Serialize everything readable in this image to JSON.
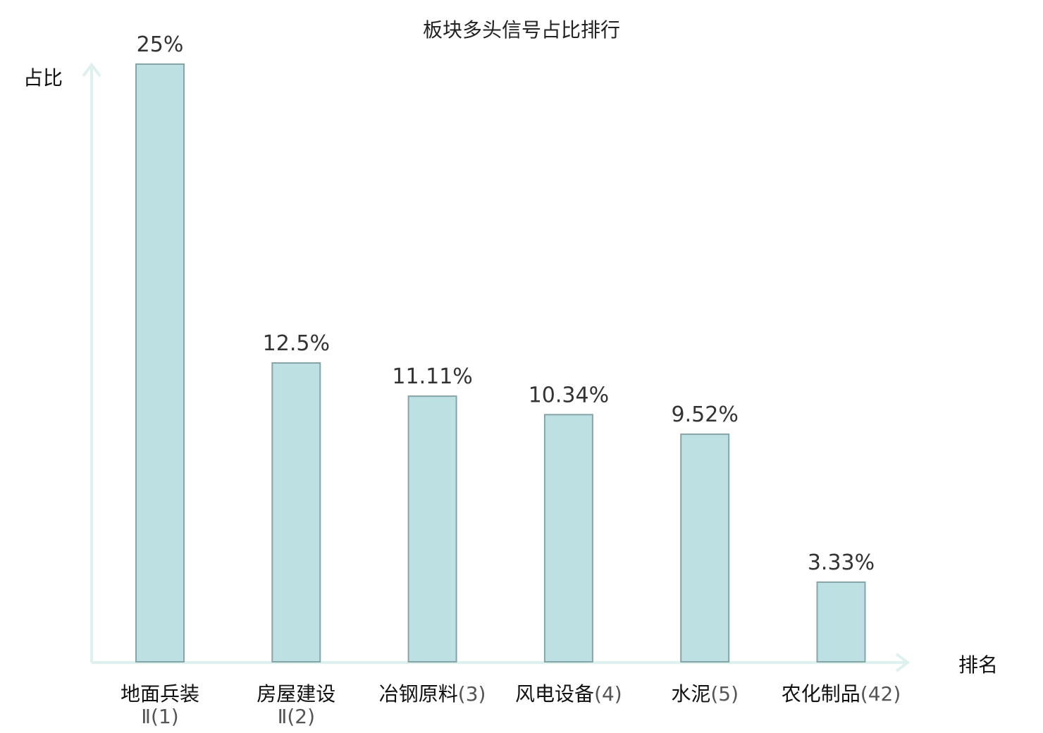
{
  "chart_data": {
    "type": "bar",
    "title": "板块多头信号占比排行",
    "ylabel": "占比",
    "xlabel": "排名",
    "ylim": [
      0,
      25
    ],
    "grid": false,
    "value_labels": [
      "25%",
      "12.5%",
      "11.11%",
      "10.34%",
      "9.52%",
      "3.33%"
    ],
    "categories": [
      {
        "name": "地面兵装",
        "rank": "Ⅱ(1)",
        "highlight": false
      },
      {
        "name": "房屋建设",
        "rank": "Ⅱ(2)",
        "highlight": false
      },
      {
        "name": "冶钢原料",
        "rank": "(3)",
        "highlight": false
      },
      {
        "name": "风电设备",
        "rank": "(4)",
        "highlight": false
      },
      {
        "name": "水泥",
        "rank": "(5)",
        "highlight": false
      },
      {
        "name": "农化制品",
        "rank": "(42)",
        "highlight": true
      }
    ],
    "values": [
      25,
      12.5,
      11.11,
      10.34,
      9.52,
      3.33
    ]
  },
  "colors": {
    "bar_fill": "#bde0e3",
    "bar_stroke": "#86a5a9",
    "axis": "#dff1ef",
    "highlight": "#e8272b"
  }
}
